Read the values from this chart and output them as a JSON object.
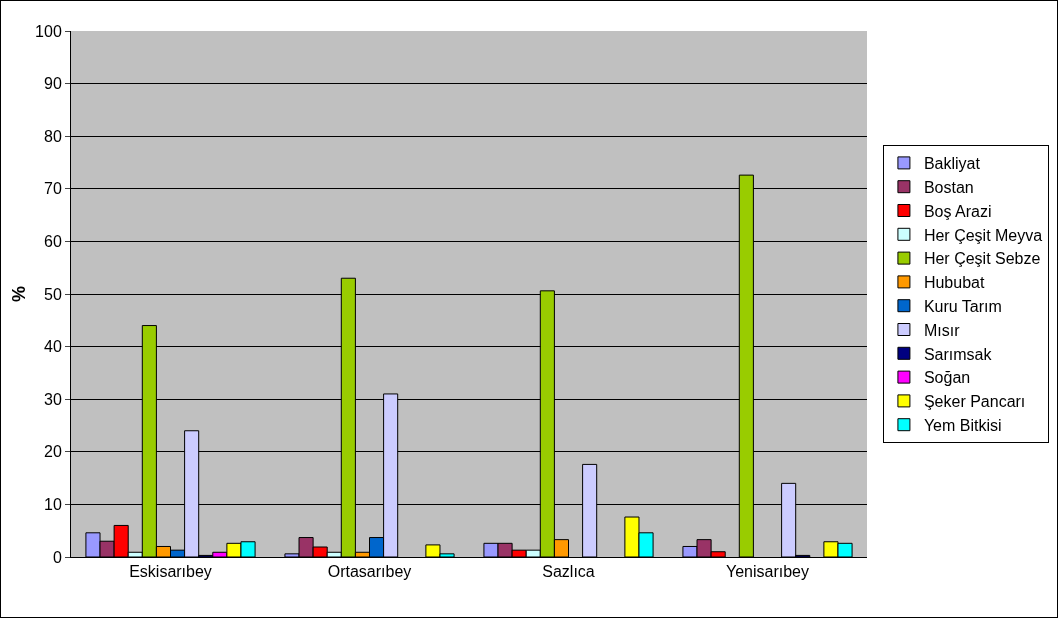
{
  "chart_data": {
    "type": "bar",
    "ylabel": "%",
    "categories": [
      "Eskisarıbey",
      "Ortasarıbey",
      "Sazlıca",
      "Yenisarıbey"
    ],
    "ylim": [
      0,
      100
    ],
    "yticks": [
      0,
      10,
      20,
      30,
      40,
      50,
      60,
      70,
      80,
      90,
      100
    ],
    "grid": "y",
    "legend": "right",
    "series": [
      {
        "name": "Bakliyat",
        "color": "#9999ff",
        "values": [
          4.6,
          0.6,
          2.6,
          2.0
        ]
      },
      {
        "name": "Bostan",
        "color": "#993366",
        "values": [
          3.0,
          3.7,
          2.6,
          3.3
        ]
      },
      {
        "name": "Boş Arazi",
        "color": "#ff0000",
        "values": [
          6.0,
          1.9,
          1.3,
          1.0
        ]
      },
      {
        "name": "Her Çeşit Meyva",
        "color": "#ccffff",
        "values": [
          0.9,
          0.9,
          1.3,
          0
        ]
      },
      {
        "name": "Her Çeşit Sebze",
        "color": "#99cc00",
        "values": [
          44,
          53,
          50.6,
          72.6
        ]
      },
      {
        "name": "Hububat",
        "color": "#ff9900",
        "values": [
          2.0,
          0.9,
          3.3,
          null
        ]
      },
      {
        "name": "Kuru Tarım",
        "color": "#0066cc",
        "values": [
          1.3,
          3.7,
          0,
          null
        ]
      },
      {
        "name": "Mısır",
        "color": "#ccccff",
        "values": [
          24,
          31,
          17.6,
          14
        ]
      },
      {
        "name": "Sarımsak",
        "color": "#000080",
        "values": [
          0.3,
          0,
          0,
          0.3
        ]
      },
      {
        "name": "Soğan",
        "color": "#ff00ff",
        "values": [
          0.9,
          0,
          0,
          0
        ]
      },
      {
        "name": "Şeker Pancarı",
        "color": "#ffff00",
        "values": [
          2.6,
          2.3,
          7.6,
          2.9
        ]
      },
      {
        "name": "Yem Bitkisi",
        "color": "#00ffff",
        "values": [
          2.9,
          0.6,
          4.6,
          2.6
        ]
      }
    ]
  }
}
